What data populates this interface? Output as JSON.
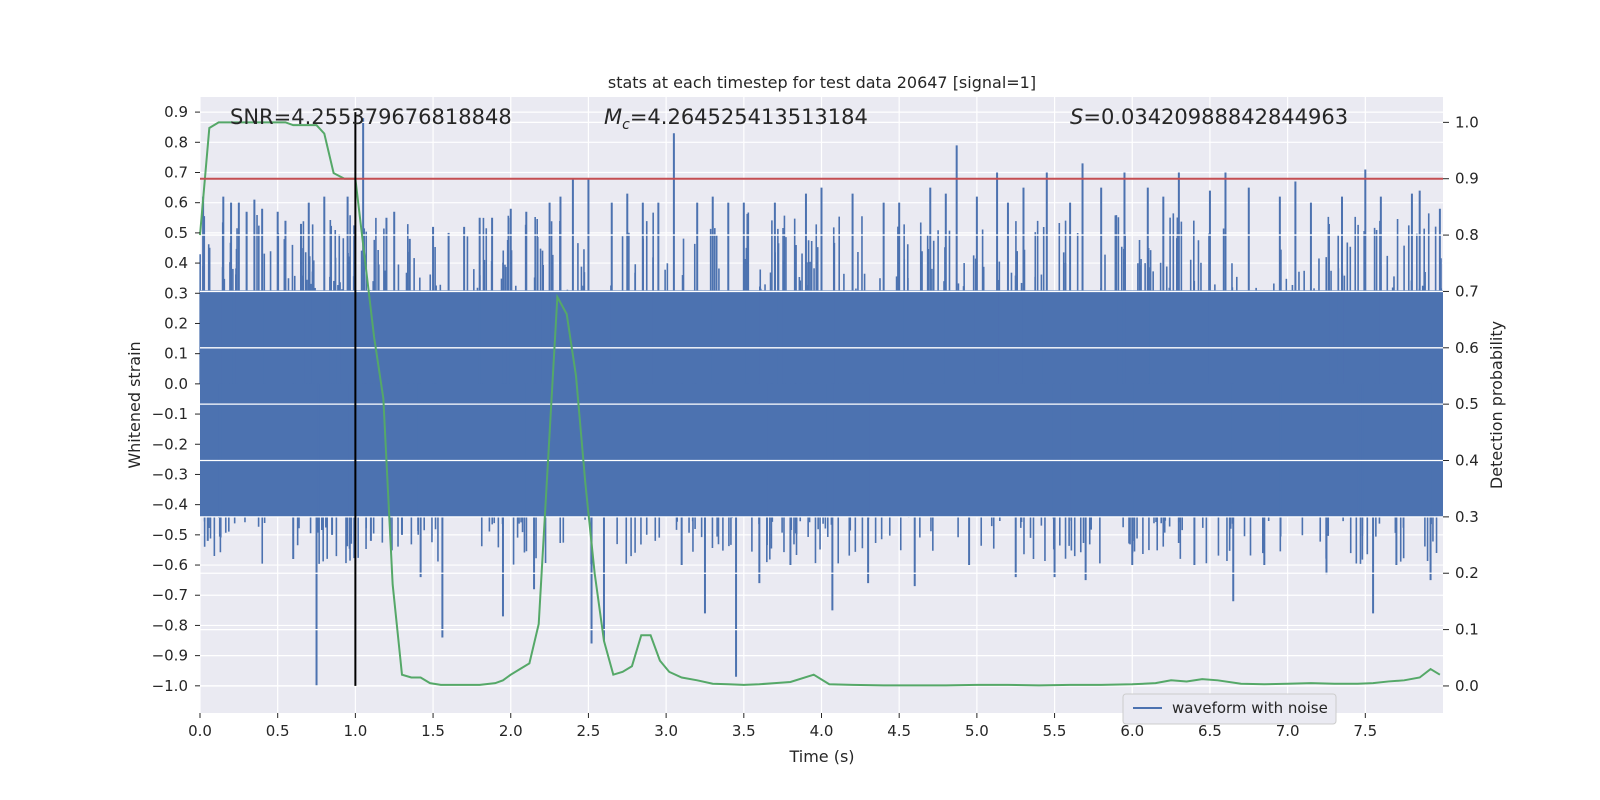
{
  "chart_data": {
    "type": "line",
    "title": "stats at each timestep for test data 20647 [signal=1]",
    "xlabel": "Time (s)",
    "ylabel": "Whitened strain",
    "ylabel_right": "Detection probability",
    "xlim": [
      0.0,
      8.0
    ],
    "ylim": [
      -1.09,
      0.95
    ],
    "ylim_right": [
      -0.048,
      1.045
    ],
    "x_ticks": [
      "0.0",
      "0.5",
      "1.0",
      "1.5",
      "2.0",
      "2.5",
      "3.0",
      "3.5",
      "4.0",
      "4.5",
      "5.0",
      "5.5",
      "6.0",
      "6.5",
      "7.0",
      "7.5"
    ],
    "x_tick_values": [
      0.0,
      0.5,
      1.0,
      1.5,
      2.0,
      2.5,
      3.0,
      3.5,
      4.0,
      4.5,
      5.0,
      5.5,
      6.0,
      6.5,
      7.0,
      7.5
    ],
    "y_ticks": [
      "0.9",
      "0.8",
      "0.7",
      "0.6",
      "0.5",
      "0.4",
      "0.3",
      "0.2",
      "0.1",
      "0.0",
      "−0.1",
      "−0.2",
      "−0.3",
      "−0.4",
      "−0.5",
      "−0.6",
      "−0.7",
      "−0.8",
      "−0.9",
      "−1.0"
    ],
    "y_tick_values": [
      0.9,
      0.8,
      0.7,
      0.6,
      0.5,
      0.4,
      0.3,
      0.2,
      0.1,
      0.0,
      -0.1,
      -0.2,
      -0.3,
      -0.4,
      -0.5,
      -0.6,
      -0.7,
      -0.8,
      -0.9,
      -1.0
    ],
    "y_right_ticks": [
      "1.0",
      "0.9",
      "0.8",
      "0.7",
      "0.6",
      "0.5",
      "0.4",
      "0.3",
      "0.2",
      "0.1",
      "0.0"
    ],
    "y_right_tick_values": [
      1.0,
      0.9,
      0.8,
      0.7,
      0.6,
      0.5,
      0.4,
      0.3,
      0.2,
      0.1,
      0.0
    ],
    "stats": {
      "snr_label": "SNR=4.255379676818848",
      "mc_label": "=4.264525413513184",
      "s_label": "=0.03420988842844963"
    },
    "threshold": {
      "value": 0.9,
      "axis": "right",
      "color": "#c44e52"
    },
    "vline": {
      "x": 1.0,
      "ymin": -1.0,
      "ymax": 0.9,
      "color": "#000000"
    },
    "waveform_peaks": {
      "name": "waveform with noise",
      "color": "#4c72b0",
      "points": [
        [
          0.02,
          0.62
        ],
        [
          0.05,
          -0.52
        ],
        [
          0.15,
          0.62
        ],
        [
          0.2,
          0.6
        ],
        [
          0.25,
          0.6
        ],
        [
          0.3,
          0.57
        ],
        [
          0.35,
          0.61
        ],
        [
          0.4,
          0.58
        ],
        [
          0.5,
          0.57
        ],
        [
          0.55,
          0.54
        ],
        [
          0.6,
          -0.58
        ],
        [
          0.65,
          0.53
        ],
        [
          0.7,
          0.6
        ],
        [
          0.75,
          -1.0
        ],
        [
          0.8,
          0.62
        ],
        [
          0.85,
          -0.5
        ],
        [
          0.95,
          0.62
        ],
        [
          1.05,
          0.88
        ],
        [
          1.1,
          -0.52
        ],
        [
          1.2,
          0.55
        ],
        [
          1.25,
          0.57
        ],
        [
          1.3,
          -0.5
        ],
        [
          1.35,
          0.48
        ],
        [
          1.42,
          -0.64
        ],
        [
          1.5,
          0.52
        ],
        [
          1.56,
          -0.84
        ],
        [
          1.6,
          0.5
        ],
        [
          1.7,
          0.52
        ],
        [
          1.8,
          0.55
        ],
        [
          1.88,
          0.55
        ],
        [
          1.95,
          -0.77
        ],
        [
          2.0,
          0.58
        ],
        [
          2.1,
          0.57
        ],
        [
          2.15,
          -0.68
        ],
        [
          2.25,
          0.6
        ],
        [
          2.32,
          0.62
        ],
        [
          2.4,
          0.68
        ],
        [
          2.5,
          0.68
        ],
        [
          2.52,
          -0.86
        ],
        [
          2.6,
          -0.85
        ],
        [
          2.65,
          0.6
        ],
        [
          2.75,
          0.63
        ],
        [
          2.85,
          0.6
        ],
        [
          2.95,
          0.6
        ],
        [
          3.05,
          0.83
        ],
        [
          3.1,
          -0.6
        ],
        [
          3.2,
          0.6
        ],
        [
          3.25,
          -0.76
        ],
        [
          3.3,
          0.62
        ],
        [
          3.4,
          0.6
        ],
        [
          3.45,
          -0.97
        ],
        [
          3.5,
          0.6
        ],
        [
          3.6,
          -0.66
        ],
        [
          3.7,
          0.6
        ],
        [
          3.8,
          -0.6
        ],
        [
          3.9,
          0.63
        ],
        [
          4.0,
          0.65
        ],
        [
          4.07,
          -0.75
        ],
        [
          4.2,
          0.63
        ],
        [
          4.3,
          -0.66
        ],
        [
          4.4,
          0.6
        ],
        [
          4.5,
          0.6
        ],
        [
          4.6,
          -0.67
        ],
        [
          4.7,
          0.65
        ],
        [
          4.8,
          0.63
        ],
        [
          4.87,
          0.79
        ],
        [
          4.95,
          -0.6
        ],
        [
          5.0,
          0.62
        ],
        [
          5.13,
          0.7
        ],
        [
          5.2,
          0.6
        ],
        [
          5.25,
          -0.64
        ],
        [
          5.3,
          0.65
        ],
        [
          5.45,
          0.7
        ],
        [
          5.5,
          -0.64
        ],
        [
          5.6,
          0.6
        ],
        [
          5.68,
          0.73
        ],
        [
          5.7,
          -0.65
        ],
        [
          5.8,
          0.65
        ],
        [
          5.95,
          0.7
        ],
        [
          6.0,
          -0.6
        ],
        [
          6.1,
          0.65
        ],
        [
          6.2,
          0.62
        ],
        [
          6.3,
          0.7
        ],
        [
          6.4,
          -0.6
        ],
        [
          6.5,
          0.64
        ],
        [
          6.6,
          0.7
        ],
        [
          6.65,
          -0.72
        ],
        [
          6.75,
          0.65
        ],
        [
          6.85,
          -0.6
        ],
        [
          6.95,
          0.62
        ],
        [
          7.05,
          0.67
        ],
        [
          7.15,
          0.6
        ],
        [
          7.25,
          -0.63
        ],
        [
          7.35,
          0.62
        ],
        [
          7.5,
          0.71
        ],
        [
          7.55,
          -0.76
        ],
        [
          7.6,
          0.62
        ],
        [
          7.7,
          -0.6
        ],
        [
          7.8,
          0.63
        ],
        [
          7.85,
          0.64
        ],
        [
          7.92,
          -0.65
        ],
        [
          7.98,
          0.58
        ]
      ]
    },
    "probability": {
      "name": "detection probability",
      "color": "#55a868",
      "x": [
        0.0,
        0.06,
        0.12,
        0.18,
        0.25,
        0.35,
        0.45,
        0.55,
        0.6,
        0.65,
        0.7,
        0.75,
        0.8,
        0.86,
        0.93,
        1.0,
        1.06,
        1.12,
        1.18,
        1.24,
        1.3,
        1.36,
        1.42,
        1.48,
        1.55,
        1.62,
        1.7,
        1.8,
        1.9,
        1.95,
        2.0,
        2.06,
        2.12,
        2.18,
        2.24,
        2.3,
        2.36,
        2.42,
        2.48,
        2.54,
        2.6,
        2.66,
        2.72,
        2.78,
        2.84,
        2.9,
        2.96,
        3.02,
        3.1,
        3.2,
        3.3,
        3.4,
        3.5,
        3.6,
        3.7,
        3.8,
        3.95,
        4.05,
        4.2,
        4.4,
        4.6,
        4.8,
        5.0,
        5.2,
        5.4,
        5.6,
        5.8,
        6.0,
        6.15,
        6.25,
        6.35,
        6.45,
        6.55,
        6.7,
        6.85,
        7.0,
        7.15,
        7.3,
        7.45,
        7.55,
        7.65,
        7.75,
        7.85,
        7.92,
        7.98
      ],
      "y": [
        0.8,
        0.99,
        1.0,
        1.0,
        1.0,
        1.0,
        1.0,
        1.0,
        0.995,
        0.995,
        0.995,
        0.995,
        0.98,
        0.91,
        0.9,
        0.9,
        0.76,
        0.62,
        0.51,
        0.18,
        0.02,
        0.015,
        0.015,
        0.005,
        0.002,
        0.002,
        0.002,
        0.002,
        0.005,
        0.01,
        0.02,
        0.03,
        0.04,
        0.11,
        0.4,
        0.69,
        0.66,
        0.55,
        0.36,
        0.2,
        0.08,
        0.02,
        0.025,
        0.035,
        0.09,
        0.09,
        0.045,
        0.025,
        0.015,
        0.01,
        0.004,
        0.003,
        0.002,
        0.003,
        0.005,
        0.007,
        0.02,
        0.003,
        0.002,
        0.001,
        0.001,
        0.001,
        0.002,
        0.002,
        0.001,
        0.002,
        0.002,
        0.003,
        0.005,
        0.01,
        0.008,
        0.012,
        0.01,
        0.004,
        0.003,
        0.004,
        0.005,
        0.004,
        0.004,
        0.005,
        0.008,
        0.01,
        0.015,
        0.03,
        0.02
      ]
    }
  }
}
